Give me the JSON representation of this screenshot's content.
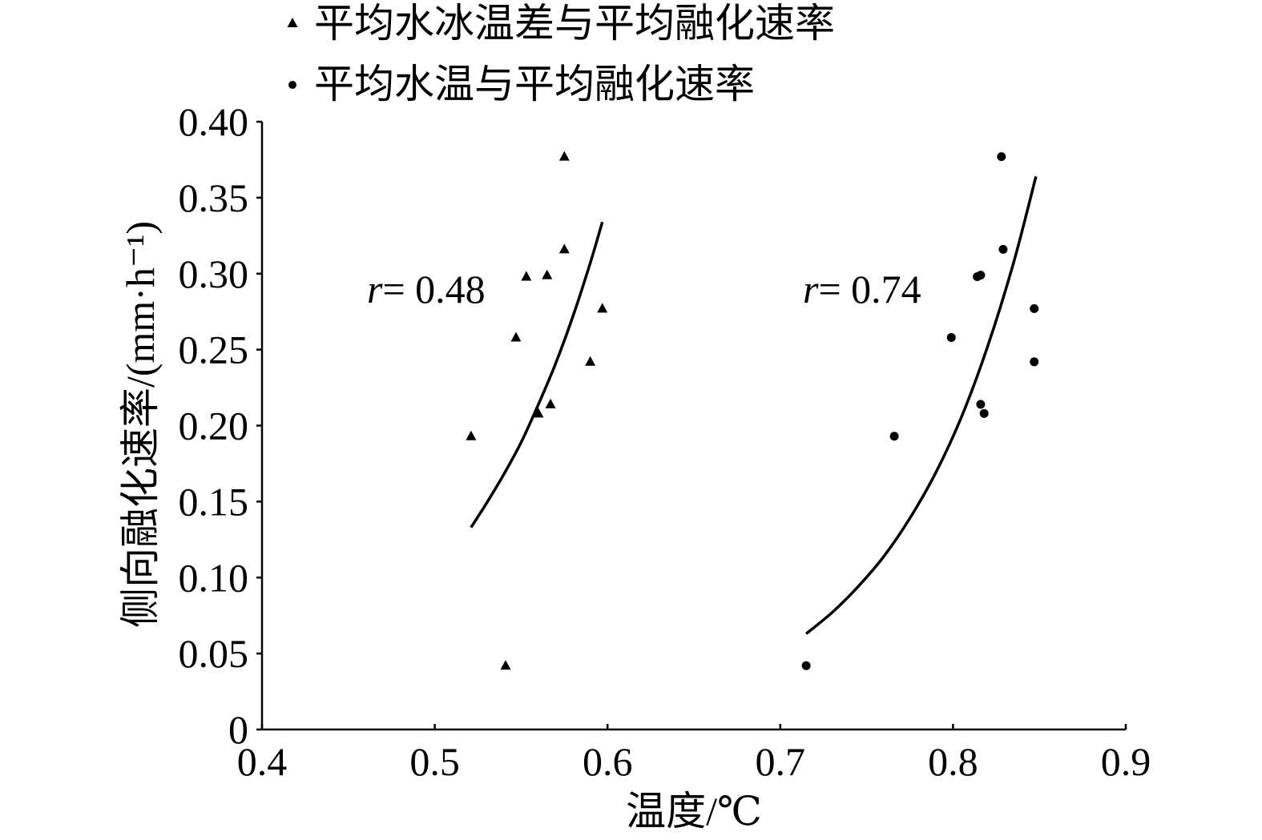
{
  "colors": {
    "background": "#ffffff",
    "foreground": "#000000"
  },
  "chart_data": {
    "type": "scatter",
    "title": "",
    "xlabel": "温度/℃",
    "ylabel": "侧向融化速率/(mm·h⁻¹)",
    "xlim": [
      0.4,
      0.9
    ],
    "ylim": [
      0,
      0.4
    ],
    "grid": false,
    "legend_position": "top-left",
    "xticks": [
      {
        "value": 0.4,
        "label": "0.4"
      },
      {
        "value": 0.5,
        "label": "0.5"
      },
      {
        "value": 0.6,
        "label": "0.6"
      },
      {
        "value": 0.7,
        "label": "0.7"
      },
      {
        "value": 0.8,
        "label": "0.8"
      },
      {
        "value": 0.9,
        "label": "0.9"
      }
    ],
    "yticks": [
      {
        "value": 0,
        "label": "0"
      },
      {
        "value": 0.05,
        "label": "0.05"
      },
      {
        "value": 0.1,
        "label": "0.10"
      },
      {
        "value": 0.15,
        "label": "0.15"
      },
      {
        "value": 0.2,
        "label": "0.20"
      },
      {
        "value": 0.25,
        "label": "0.25"
      },
      {
        "value": 0.3,
        "label": "0.30"
      },
      {
        "value": 0.35,
        "label": "0.35"
      },
      {
        "value": 0.4,
        "label": "0.40"
      }
    ],
    "series": [
      {
        "name": "平均水冰温差与平均融化速率",
        "marker": "triangle",
        "points": [
          [
            0.521,
            0.193
          ],
          [
            0.541,
            0.042
          ],
          [
            0.547,
            0.258
          ],
          [
            0.553,
            0.298
          ],
          [
            0.56,
            0.208
          ],
          [
            0.565,
            0.299
          ],
          [
            0.567,
            0.214
          ],
          [
            0.575,
            0.377
          ],
          [
            0.575,
            0.316
          ],
          [
            0.59,
            0.242
          ],
          [
            0.597,
            0.277
          ]
        ],
        "fit_curve": [
          [
            0.521,
            0.133
          ],
          [
            0.53,
            0.149
          ],
          [
            0.54,
            0.168
          ],
          [
            0.55,
            0.189
          ],
          [
            0.56,
            0.214
          ],
          [
            0.57,
            0.241
          ],
          [
            0.58,
            0.272
          ],
          [
            0.59,
            0.307
          ],
          [
            0.597,
            0.334
          ]
        ]
      },
      {
        "name": "平均水温与平均融化速率",
        "marker": "circle",
        "points": [
          [
            0.715,
            0.042
          ],
          [
            0.766,
            0.193
          ],
          [
            0.799,
            0.258
          ],
          [
            0.814,
            0.298
          ],
          [
            0.816,
            0.299
          ],
          [
            0.816,
            0.214
          ],
          [
            0.818,
            0.208
          ],
          [
            0.828,
            0.377
          ],
          [
            0.829,
            0.316
          ],
          [
            0.847,
            0.277
          ],
          [
            0.847,
            0.242
          ]
        ],
        "fit_curve": [
          [
            0.715,
            0.063
          ],
          [
            0.73,
            0.077
          ],
          [
            0.745,
            0.094
          ],
          [
            0.76,
            0.114
          ],
          [
            0.775,
            0.139
          ],
          [
            0.79,
            0.169
          ],
          [
            0.805,
            0.206
          ],
          [
            0.82,
            0.252
          ],
          [
            0.835,
            0.307
          ],
          [
            0.848,
            0.364
          ]
        ]
      }
    ],
    "annotations": [
      {
        "variable": "r",
        "value": "= 0.48"
      },
      {
        "variable": "r",
        "value": "= 0.74"
      }
    ]
  }
}
